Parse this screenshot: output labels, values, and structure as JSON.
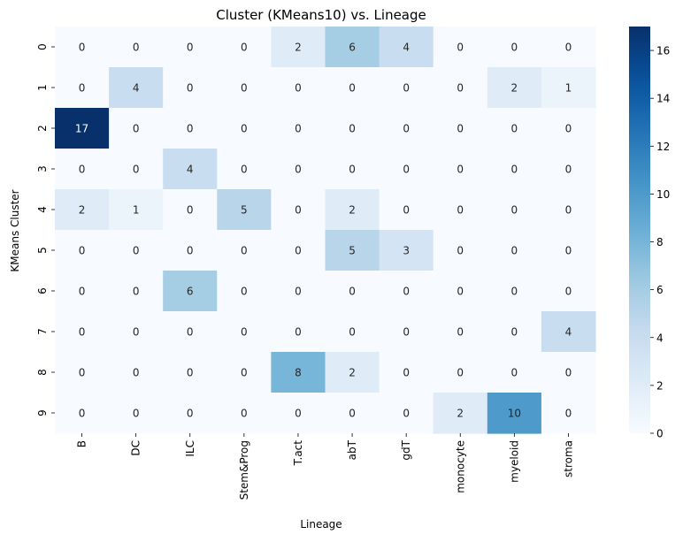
{
  "chart_data": {
    "type": "heatmap",
    "title": "Cluster (KMeans10) vs. Lineage",
    "xlabel": "Lineage",
    "ylabel": "KMeans Cluster",
    "x_categories": [
      "B",
      "DC",
      "ILC",
      "Stem&Prog",
      "T.act",
      "abT",
      "gdT",
      "monocyte",
      "myeloid",
      "stroma"
    ],
    "y_categories": [
      "0",
      "1",
      "2",
      "3",
      "4",
      "5",
      "6",
      "7",
      "8",
      "9"
    ],
    "values": [
      [
        0,
        0,
        0,
        0,
        2,
        6,
        4,
        0,
        0,
        0
      ],
      [
        0,
        4,
        0,
        0,
        0,
        0,
        0,
        0,
        2,
        1
      ],
      [
        17,
        0,
        0,
        0,
        0,
        0,
        0,
        0,
        0,
        0
      ],
      [
        0,
        0,
        4,
        0,
        0,
        0,
        0,
        0,
        0,
        0
      ],
      [
        2,
        1,
        0,
        5,
        0,
        2,
        0,
        0,
        0,
        0
      ],
      [
        0,
        0,
        0,
        0,
        0,
        5,
        3,
        0,
        0,
        0
      ],
      [
        0,
        0,
        6,
        0,
        0,
        0,
        0,
        0,
        0,
        0
      ],
      [
        0,
        0,
        0,
        0,
        0,
        0,
        0,
        0,
        0,
        4
      ],
      [
        0,
        0,
        0,
        0,
        8,
        2,
        0,
        0,
        0,
        0
      ],
      [
        0,
        0,
        0,
        0,
        0,
        0,
        0,
        2,
        10,
        0
      ]
    ],
    "colormap": "Blues",
    "vmin": 0,
    "vmax": 17,
    "colorbar_ticks": [
      "0",
      "2",
      "4",
      "6",
      "8",
      "10",
      "12",
      "14",
      "16"
    ],
    "annotations": true,
    "grid": false,
    "colorbar_placement": "right"
  }
}
